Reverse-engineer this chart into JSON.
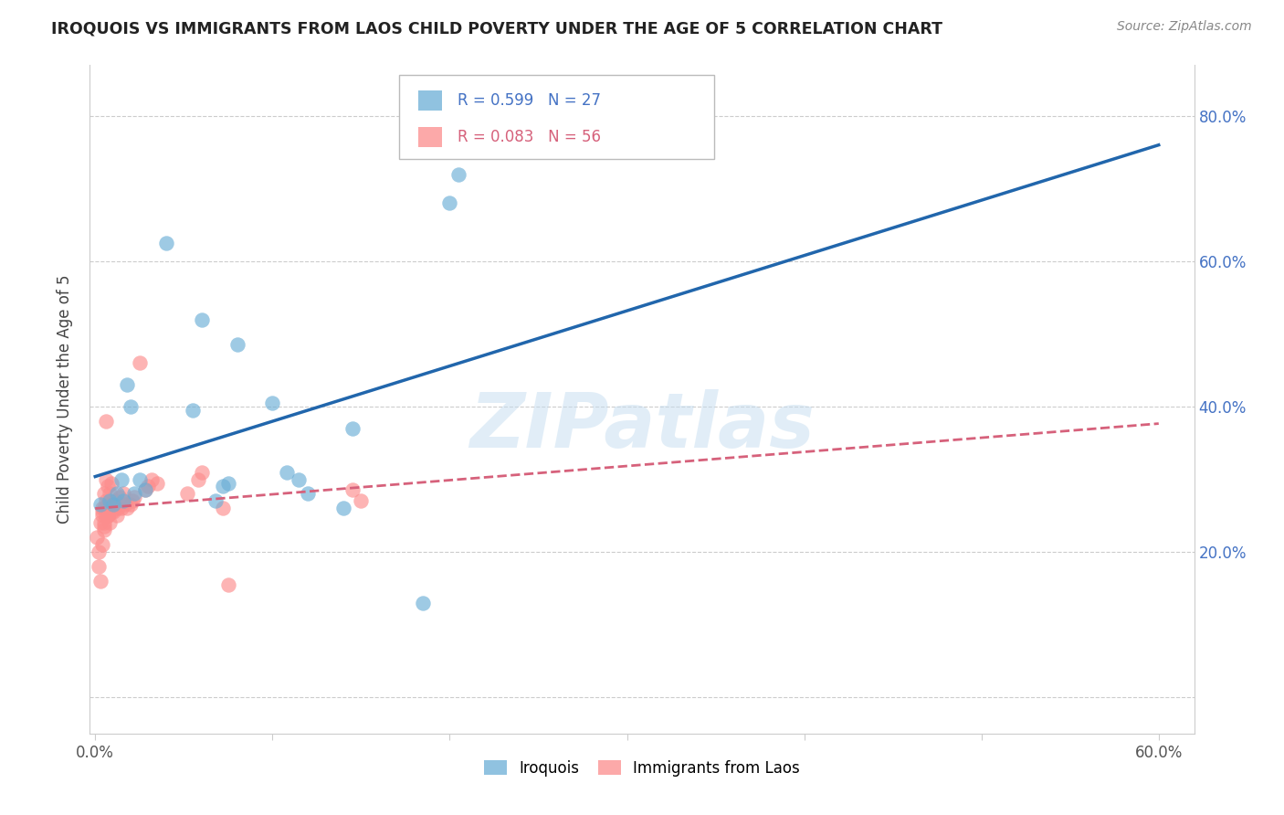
{
  "title": "IROQUOIS VS IMMIGRANTS FROM LAOS CHILD POVERTY UNDER THE AGE OF 5 CORRELATION CHART",
  "source": "Source: ZipAtlas.com",
  "ylabel_label": "Child Poverty Under the Age of 5",
  "r_iroquois": 0.599,
  "n_iroquois": 27,
  "r_laos": 0.083,
  "n_laos": 56,
  "xlim": [
    -0.003,
    0.62
  ],
  "ylim": [
    -0.05,
    0.87
  ],
  "xticks": [
    0.0,
    0.1,
    0.2,
    0.3,
    0.4,
    0.5,
    0.6
  ],
  "xtick_labels_sparse": [
    "0.0%",
    "",
    "",
    "",
    "",
    "",
    "60.0%"
  ],
  "yticks": [
    0.0,
    0.2,
    0.4,
    0.6,
    0.8
  ],
  "ytick_labels_right": [
    "",
    "20.0%",
    "40.0%",
    "60.0%",
    "80.0%"
  ],
  "color_iroquois": "#6baed6",
  "color_laos": "#fc8d8d",
  "trendline_color_iroquois": "#2166ac",
  "trendline_color_laos": "#d6617b",
  "watermark": "ZIPatlas",
  "legend_labels": [
    "Iroquois",
    "Immigrants from Laos"
  ],
  "iroquois_x": [
    0.003,
    0.008,
    0.01,
    0.012,
    0.015,
    0.016,
    0.018,
    0.02,
    0.022,
    0.025,
    0.028,
    0.04,
    0.055,
    0.06,
    0.068,
    0.072,
    0.075,
    0.08,
    0.1,
    0.108,
    0.115,
    0.12,
    0.14,
    0.145,
    0.185,
    0.2,
    0.205
  ],
  "iroquois_y": [
    0.265,
    0.27,
    0.265,
    0.28,
    0.3,
    0.27,
    0.43,
    0.4,
    0.28,
    0.3,
    0.285,
    0.625,
    0.395,
    0.52,
    0.27,
    0.29,
    0.295,
    0.485,
    0.405,
    0.31,
    0.3,
    0.28,
    0.26,
    0.37,
    0.13,
    0.68,
    0.72
  ],
  "laos_x": [
    0.001,
    0.002,
    0.002,
    0.003,
    0.003,
    0.004,
    0.004,
    0.004,
    0.004,
    0.005,
    0.005,
    0.005,
    0.005,
    0.005,
    0.006,
    0.006,
    0.006,
    0.006,
    0.007,
    0.007,
    0.007,
    0.007,
    0.007,
    0.007,
    0.007,
    0.008,
    0.008,
    0.008,
    0.009,
    0.009,
    0.009,
    0.01,
    0.01,
    0.011,
    0.012,
    0.013,
    0.014,
    0.015,
    0.016,
    0.017,
    0.018,
    0.02,
    0.021,
    0.022,
    0.025,
    0.028,
    0.03,
    0.032,
    0.035,
    0.052,
    0.058,
    0.06,
    0.072,
    0.075,
    0.145,
    0.15
  ],
  "laos_y": [
    0.22,
    0.2,
    0.18,
    0.16,
    0.24,
    0.21,
    0.255,
    0.26,
    0.25,
    0.24,
    0.235,
    0.23,
    0.26,
    0.28,
    0.3,
    0.25,
    0.38,
    0.27,
    0.25,
    0.29,
    0.25,
    0.265,
    0.265,
    0.25,
    0.25,
    0.24,
    0.26,
    0.28,
    0.295,
    0.255,
    0.26,
    0.255,
    0.265,
    0.27,
    0.25,
    0.26,
    0.275,
    0.26,
    0.28,
    0.265,
    0.26,
    0.265,
    0.27,
    0.275,
    0.46,
    0.285,
    0.29,
    0.3,
    0.295,
    0.28,
    0.3,
    0.31,
    0.26,
    0.155,
    0.285,
    0.27
  ]
}
